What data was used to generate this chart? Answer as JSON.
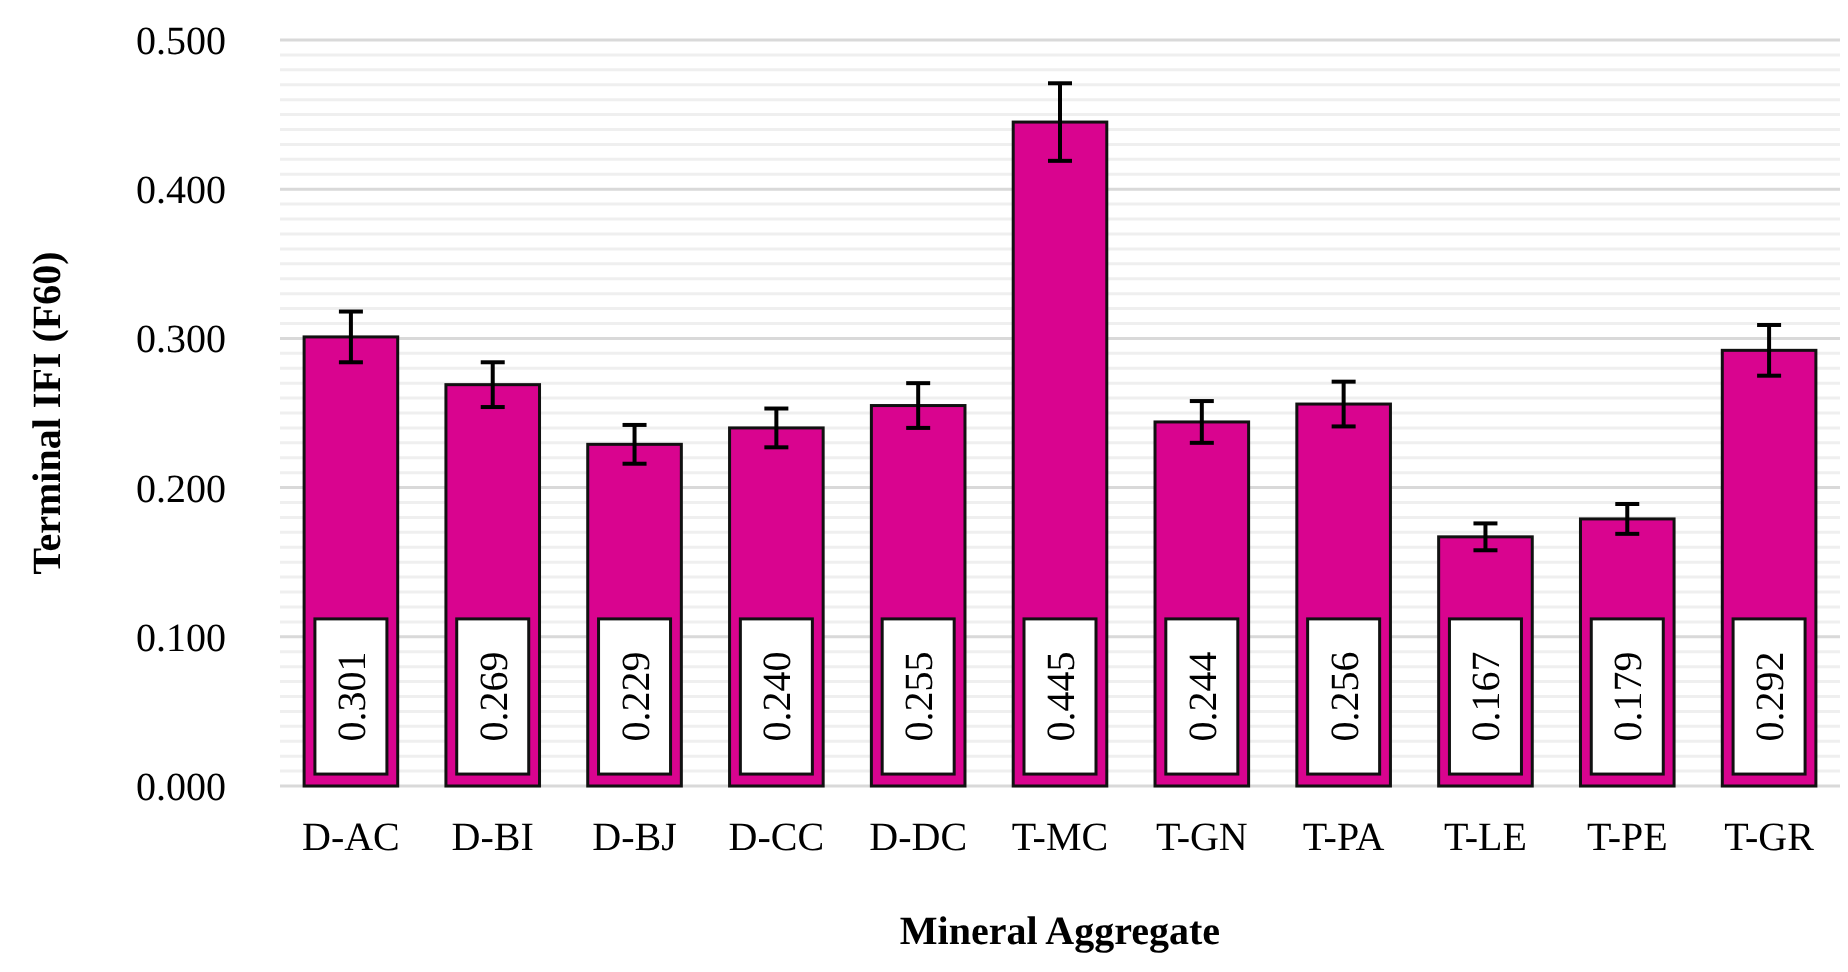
{
  "chart_data": {
    "type": "bar",
    "xlabel": "Mineral Aggregate",
    "ylabel": "Terminal IFI (F60)",
    "categories": [
      "D-AC",
      "D-BI",
      "D-BJ",
      "D-CC",
      "D-DC",
      "T-MC",
      "T-GN",
      "T-PA",
      "T-LE",
      "T-PE",
      "T-GR"
    ],
    "values": [
      0.301,
      0.269,
      0.229,
      0.24,
      0.255,
      0.445,
      0.244,
      0.256,
      0.167,
      0.179,
      0.292
    ],
    "errors": [
      0.017,
      0.015,
      0.013,
      0.013,
      0.015,
      0.026,
      0.014,
      0.015,
      0.009,
      0.01,
      0.017
    ],
    "value_labels": [
      "0.301",
      "0.269",
      "0.229",
      "0.240",
      "0.255",
      "0.445",
      "0.244",
      "0.256",
      "0.167",
      "0.179",
      "0.292"
    ],
    "color": "#d9048f",
    "ylim": [
      0,
      0.5
    ],
    "yticks": [
      {
        "value": 0,
        "label": "0.000"
      },
      {
        "value": 0.1,
        "label": "0.100"
      },
      {
        "value": 0.2,
        "label": "0.200"
      },
      {
        "value": 0.3,
        "label": "0.300"
      },
      {
        "value": 0.4,
        "label": "0.400"
      },
      {
        "value": 0.5,
        "label": "0.500"
      }
    ],
    "grid": "y"
  }
}
